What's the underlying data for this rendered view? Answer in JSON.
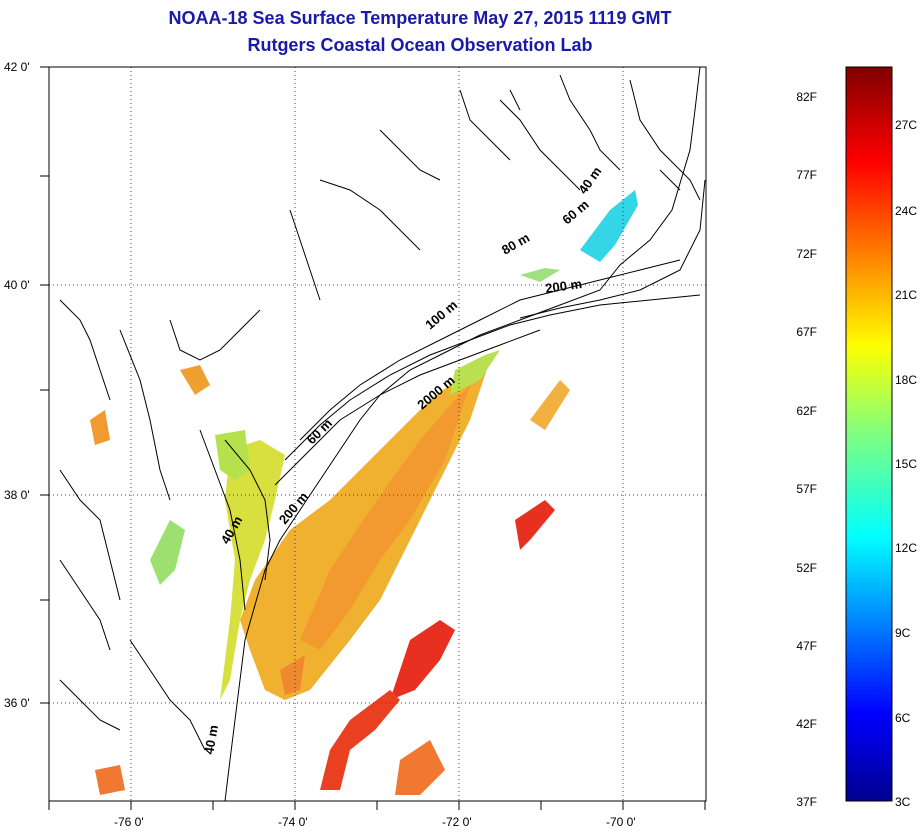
{
  "title_line1": "NOAA-18 Sea Surface Temperature May 27, 2015 1119 GMT",
  "title_line2": "Rutgers Coastal Ocean Observation Lab",
  "lat_labels": [
    "42 0'",
    "40 0'",
    "38 0'",
    "36 0'"
  ],
  "lon_labels": [
    "-76 0'",
    "-74 0'",
    "-72 0'",
    "-70 0'"
  ],
  "isobath_labels": [
    "40 m",
    "60 m",
    "80 m",
    "200 m",
    "100 m",
    "2000 m",
    "60 m",
    "200 m",
    "40 m",
    "40 m"
  ],
  "colorbar": {
    "fahrenheit": [
      "82F",
      "77F",
      "72F",
      "67F",
      "62F",
      "57F",
      "52F",
      "47F",
      "42F",
      "37F"
    ],
    "celsius": [
      "27C",
      "24C",
      "21C",
      "18C",
      "15C",
      "12C",
      "9C",
      "6C",
      "3C"
    ]
  },
  "colors": {
    "title": "#1a1aa8",
    "land_outline": "#000000",
    "grid": "#444444"
  }
}
